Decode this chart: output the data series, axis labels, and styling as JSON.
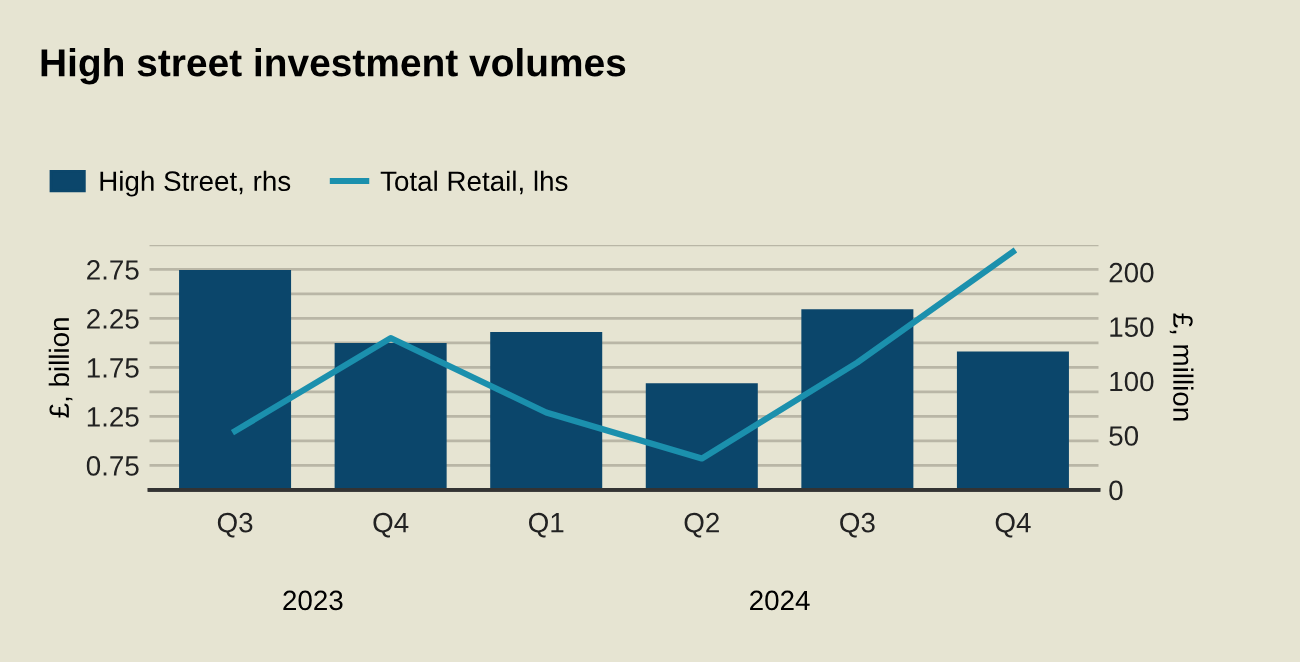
{
  "chart_data": {
    "type": "bar",
    "title": "High street investment volumes",
    "categories": [
      "Q3",
      "Q4",
      "Q1",
      "Q2",
      "Q3",
      "Q4"
    ],
    "series": [
      {
        "name": "High Street, rhs",
        "axis": "y2",
        "color": "#0b466b",
        "values": [
          202,
          135,
          145,
          98,
          166,
          127
        ]
      },
      {
        "name": "Total Retail, lhs",
        "type": "line",
        "color": "#1b90ad",
        "values": [
          1.1,
          2.05,
          1.29,
          0.82,
          1.8,
          2.93
        ]
      }
    ],
    "ylabel": "£, billion",
    "y2label": "£, million",
    "ylim": [
      0.5,
      3.0
    ],
    "yticks": [
      0.75,
      {
        "value": 1.0,
        "label": null
      },
      1.25,
      {
        "value": 1.5,
        "label": null
      },
      1.75,
      {
        "value": 2.0,
        "label": null
      },
      2.25,
      {
        "value": 2.5,
        "label": null
      },
      2.75,
      {
        "value": 3.0,
        "label": null
      }
    ],
    "y2lim": [
      0,
      225
    ],
    "y2ticks": [
      0,
      50,
      100,
      150,
      200
    ],
    "grid": "y",
    "legend": "top left",
    "marker": "none",
    "line_style": "solid",
    "annotations": [
      "2023",
      "2024"
    ]
  }
}
